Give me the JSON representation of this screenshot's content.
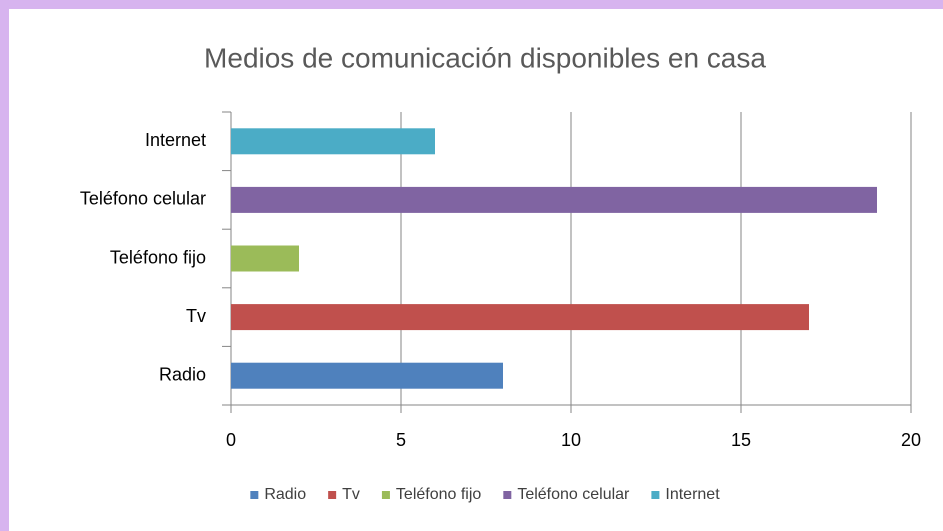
{
  "chart_data": {
    "type": "bar",
    "orientation": "horizontal",
    "title": "Medios de comunicación disponibles en casa",
    "categories": [
      "Radio",
      "Tv",
      "Teléfono fijo",
      "Teléfono celular",
      "Internet"
    ],
    "values": [
      8,
      17,
      2,
      19,
      6
    ],
    "colors": [
      "#4f81bd",
      "#c0504d",
      "#9bbb59",
      "#8064a2",
      "#4bacc6"
    ],
    "xlim": [
      0,
      20
    ],
    "xticks": [
      0,
      5,
      10,
      15,
      20
    ],
    "grid": true,
    "legend": "bottom"
  }
}
